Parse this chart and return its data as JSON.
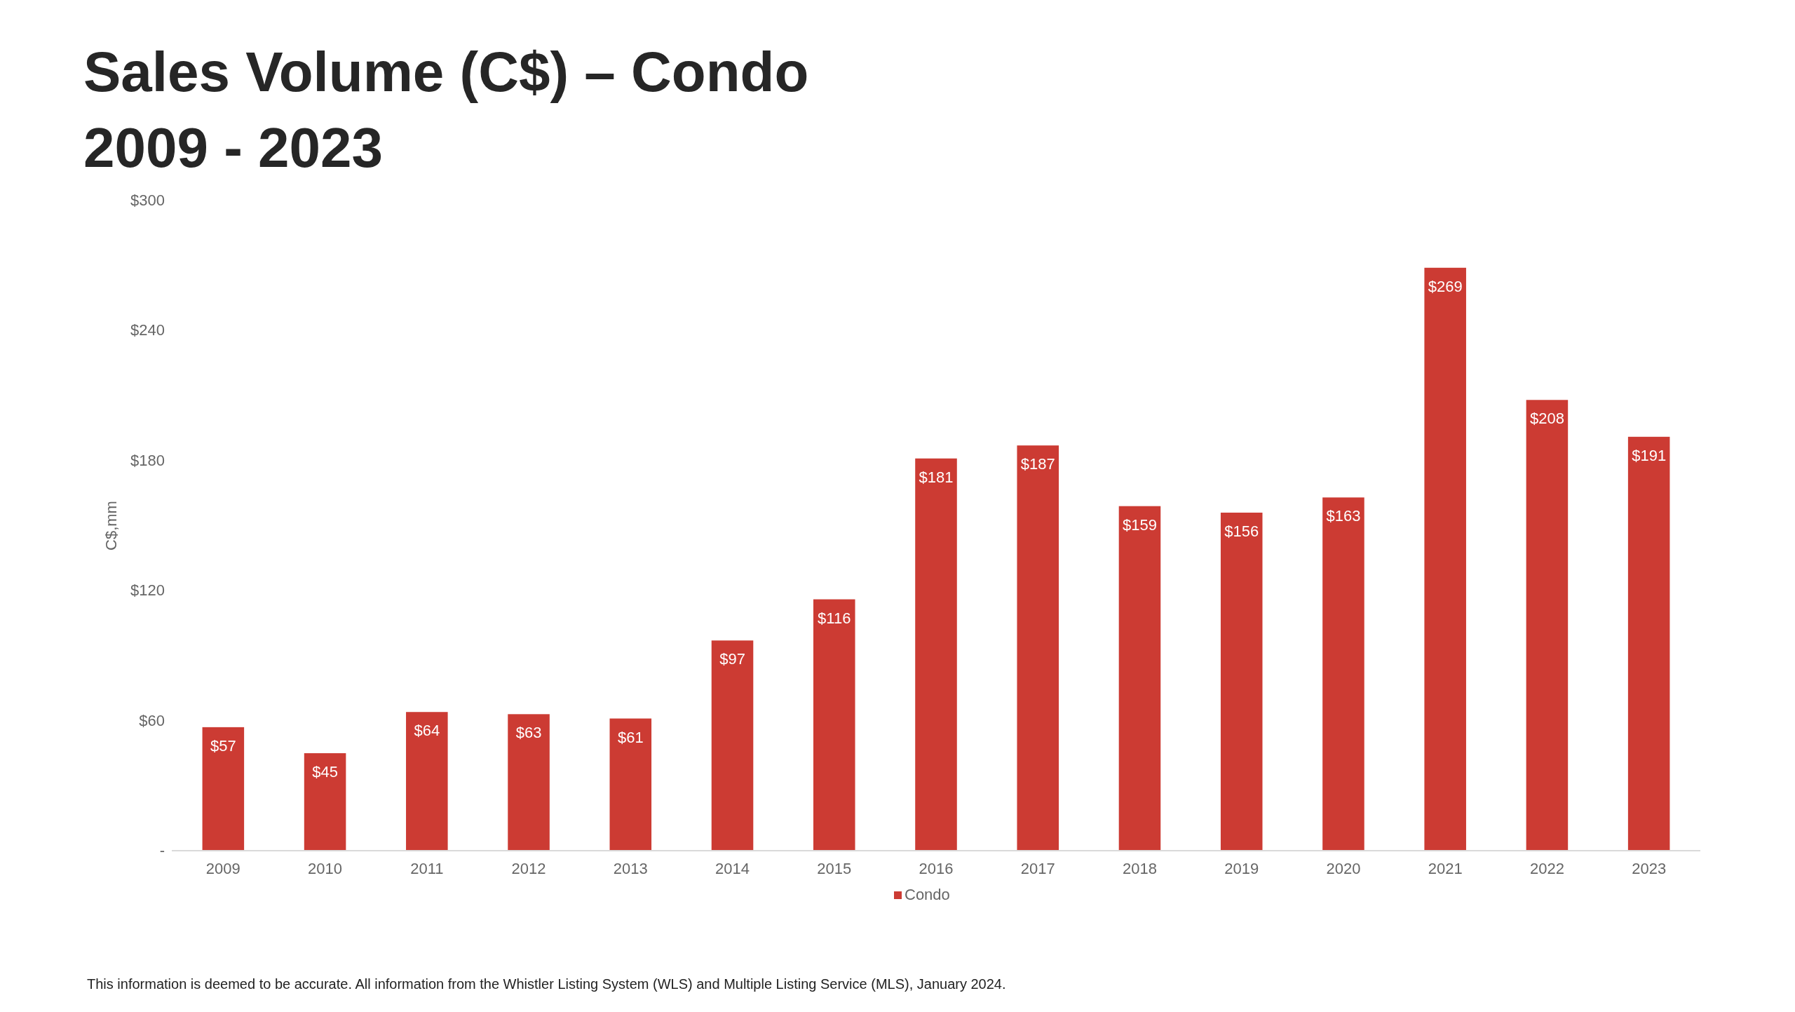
{
  "chart_data": {
    "type": "bar",
    "title": "Sales Volume (C$) – Condo",
    "subtitle": "2009 - 2023",
    "ylabel": "C$,mm",
    "categories": [
      "2009",
      "2010",
      "2011",
      "2012",
      "2013",
      "2014",
      "2015",
      "2016",
      "2017",
      "2018",
      "2019",
      "2020",
      "2021",
      "2022",
      "2023"
    ],
    "series": [
      {
        "name": "Condo",
        "color": "#cc3b33",
        "values": [
          57,
          45,
          64,
          63,
          61,
          97,
          116,
          181,
          187,
          159,
          156,
          163,
          269,
          208,
          191
        ],
        "value_labels": [
          "$57",
          "$45",
          "$64",
          "$63",
          "$61",
          "$97",
          "$116",
          "$181",
          "$187",
          "$159",
          "$156",
          "$163",
          "$269",
          "$208",
          "$191"
        ]
      }
    ],
    "ylim": [
      0,
      300
    ],
    "yticks": [
      {
        "value": 0,
        "label": "-"
      },
      {
        "value": 60,
        "label": "$60"
      },
      {
        "value": 120,
        "label": "$120"
      },
      {
        "value": 180,
        "label": "$180"
      },
      {
        "value": 240,
        "label": "$240"
      },
      {
        "value": 300,
        "label": "$300"
      }
    ],
    "grid": false,
    "legend": "bottom",
    "annotations": [
      "This information is deemed to be accurate. All information from the Whistler Listing System (WLS) and Multiple Listing Service (MLS), January 2024."
    ]
  }
}
